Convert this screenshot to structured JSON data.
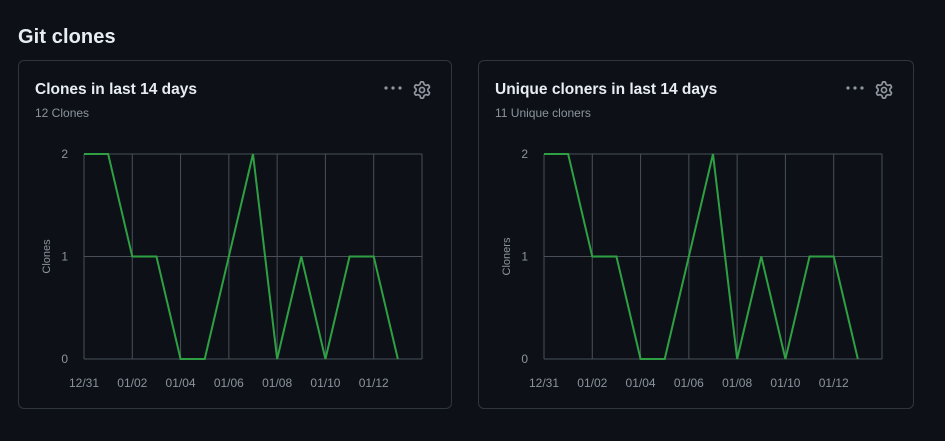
{
  "page": {
    "title": "Git clones"
  },
  "cards": [
    {
      "title": "Clones in last 14 days",
      "subtitle": "12 Clones",
      "menu_icon": "kebab-horizontal-icon",
      "settings_icon": "gear-icon"
    },
    {
      "title": "Unique cloners in last 14 days",
      "subtitle": "11 Unique cloners",
      "menu_icon": "kebab-horizontal-icon",
      "settings_icon": "gear-icon"
    }
  ],
  "colors": {
    "background": "#0d1117",
    "border": "#30363d",
    "grid": "#484f58",
    "line": "#2ea043",
    "muted_text": "#8b949e",
    "text": "#e6edf3"
  },
  "chart_data": [
    {
      "type": "line",
      "title": "Clones in last 14 days",
      "ylabel": "Clones",
      "xlabel": "",
      "x": [
        "12/31",
        "01/01",
        "01/02",
        "01/03",
        "01/04",
        "01/05",
        "01/06",
        "01/07",
        "01/08",
        "01/09",
        "01/10",
        "01/11",
        "01/12",
        "01/13"
      ],
      "x_tick_labels": [
        "12/31",
        "01/02",
        "01/04",
        "01/06",
        "01/08",
        "01/10",
        "01/12"
      ],
      "y_tick_labels": [
        "0",
        "1",
        "2"
      ],
      "ylim": [
        0,
        2
      ],
      "grid": true,
      "series": [
        {
          "values": [
            2,
            2,
            1,
            1,
            0,
            0,
            1,
            2,
            0,
            1,
            0,
            1,
            1,
            0
          ]
        }
      ]
    },
    {
      "type": "line",
      "title": "Unique cloners in last 14 days",
      "ylabel": "Cloners",
      "xlabel": "",
      "x": [
        "12/31",
        "01/01",
        "01/02",
        "01/03",
        "01/04",
        "01/05",
        "01/06",
        "01/07",
        "01/08",
        "01/09",
        "01/10",
        "01/11",
        "01/12",
        "01/13"
      ],
      "x_tick_labels": [
        "12/31",
        "01/02",
        "01/04",
        "01/06",
        "01/08",
        "01/10",
        "01/12"
      ],
      "y_tick_labels": [
        "0",
        "1",
        "2"
      ],
      "ylim": [
        0,
        2
      ],
      "grid": true,
      "series": [
        {
          "values": [
            2,
            2,
            1,
            1,
            0,
            0,
            1,
            2,
            0,
            1,
            0,
            1,
            1,
            0
          ]
        }
      ]
    }
  ]
}
